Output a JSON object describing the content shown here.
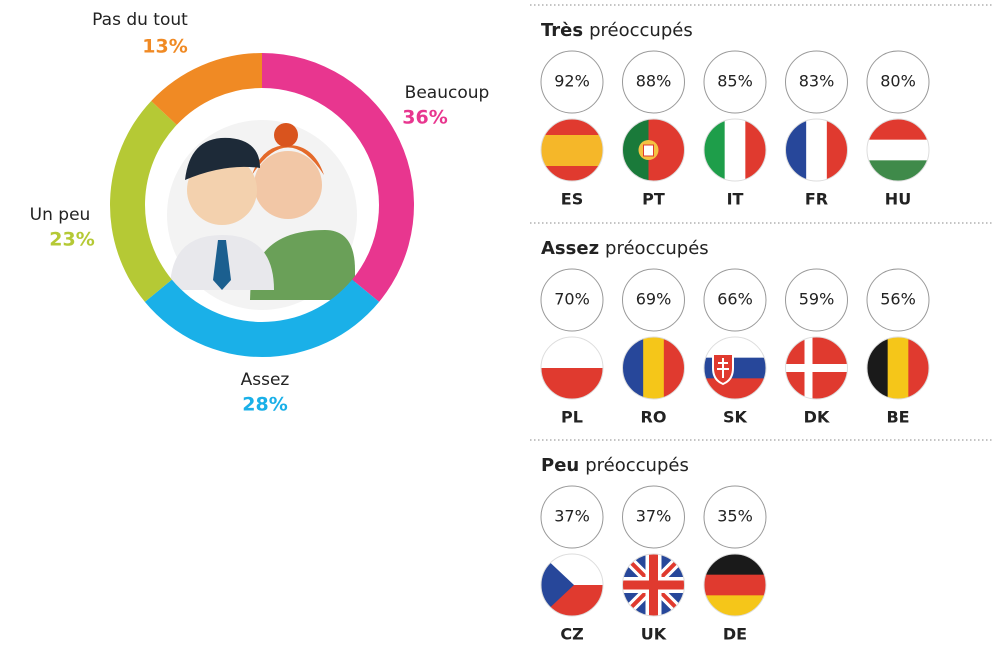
{
  "chart_data": {
    "type": "donut",
    "categories": [
      "Beaucoup",
      "Assez",
      "Un peu",
      "Pas du tout"
    ],
    "values": [
      36,
      28,
      23,
      13
    ],
    "value_labels": [
      "36%",
      "28%",
      "23%",
      "13%"
    ],
    "colors": [
      "#e8368f",
      "#1ab0e8",
      "#b5c935",
      "#f08a24"
    ]
  },
  "groups": [
    {
      "title_bold": "Très",
      "title_rest": "préoccupés",
      "countries": [
        {
          "code": "ES",
          "value": "92%"
        },
        {
          "code": "PT",
          "value": "88%"
        },
        {
          "code": "IT",
          "value": "85%"
        },
        {
          "code": "FR",
          "value": "83%"
        },
        {
          "code": "HU",
          "value": "80%"
        }
      ]
    },
    {
      "title_bold": "Assez",
      "title_rest": "préoccupés",
      "countries": [
        {
          "code": "PL",
          "value": "70%"
        },
        {
          "code": "RO",
          "value": "69%"
        },
        {
          "code": "SK",
          "value": "66%"
        },
        {
          "code": "DK",
          "value": "59%"
        },
        {
          "code": "BE",
          "value": "56%"
        }
      ]
    },
    {
      "title_bold": "Peu",
      "title_rest": "préoccupés",
      "countries": [
        {
          "code": "CZ",
          "value": "37%"
        },
        {
          "code": "UK",
          "value": "37%"
        },
        {
          "code": "DE",
          "value": "35%"
        }
      ]
    }
  ]
}
